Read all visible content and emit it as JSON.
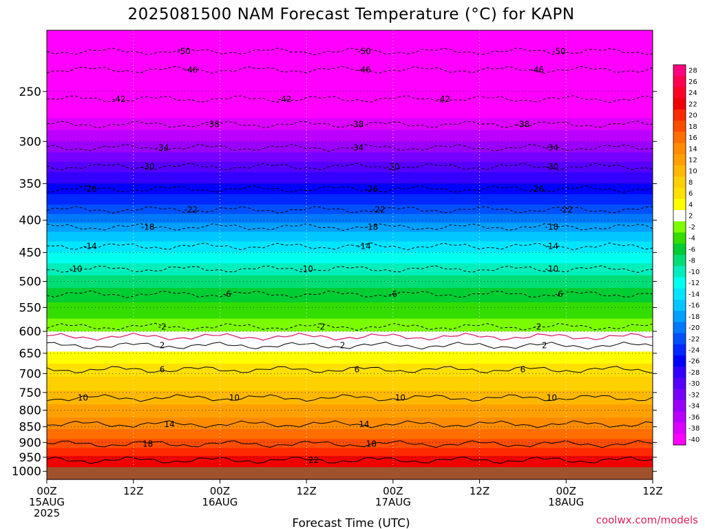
{
  "chart_data": {
    "type": "heatmap",
    "title": "2025081500 NAM Forecast Temperature (°C) for KAPN",
    "xlabel": "Forecast Time (UTC)",
    "ylabel": "",
    "credit": "coolwx.com/models",
    "x_ticks": [
      {
        "hours": 0,
        "top": "00Z",
        "mid": "15AUG",
        "bot": "2025"
      },
      {
        "hours": 12,
        "top": "12Z",
        "mid": "",
        "bot": ""
      },
      {
        "hours": 24,
        "top": "00Z",
        "mid": "16AUG",
        "bot": ""
      },
      {
        "hours": 36,
        "top": "12Z",
        "mid": "",
        "bot": ""
      },
      {
        "hours": 48,
        "top": "00Z",
        "mid": "17AUG",
        "bot": ""
      },
      {
        "hours": 60,
        "top": "12Z",
        "mid": "",
        "bot": ""
      },
      {
        "hours": 72,
        "top": "00Z",
        "mid": "18AUG",
        "bot": ""
      },
      {
        "hours": 84,
        "top": "12Z",
        "mid": "",
        "bot": ""
      }
    ],
    "xlim_hours": [
      0,
      84
    ],
    "y_ticks": [
      250,
      300,
      350,
      400,
      450,
      500,
      550,
      600,
      650,
      700,
      750,
      800,
      850,
      900,
      950,
      1000
    ],
    "ylim_pressure_hpa": [
      1030,
      200
    ],
    "ylog": true,
    "colorbar_levels": [
      "28",
      "26",
      "24",
      "22",
      "20",
      "18",
      "16",
      "14",
      "12",
      "10",
      "8",
      "6",
      "4",
      "2",
      "-2",
      "-4",
      "-6",
      "-8",
      "-10",
      "-12",
      "-14",
      "-16",
      "-18",
      "-20",
      "-22",
      "-24",
      "-26",
      "-28",
      "-30",
      "-32",
      "-34",
      "-36",
      "-38",
      "-40"
    ],
    "colorbar_colors": [
      "#ff0080",
      "#ff0050",
      "#ff0028",
      "#f00000",
      "#ff2a00",
      "#ff4d00",
      "#ff6e00",
      "#ff8c00",
      "#ffa000",
      "#ffb800",
      "#ffd000",
      "#ffe000",
      "#ffff00",
      "#ffffff",
      "#7cfc00",
      "#33dd00",
      "#00cc33",
      "#00dd77",
      "#00eebb",
      "#00ffee",
      "#00e5ff",
      "#00c8ff",
      "#00a0ff",
      "#0078ff",
      "#0050ff",
      "#0028ff",
      "#0000ff",
      "#3300ff",
      "#5500ff",
      "#7700ff",
      "#9900ff",
      "#bb00ff",
      "#dd00ff",
      "#ff00ff"
    ],
    "isotherms": [
      {
        "temp": -50,
        "pressure_hpa": 216,
        "labels_at_hours": [
          19,
          44,
          71
        ]
      },
      {
        "temp": -46,
        "pressure_hpa": 231,
        "labels_at_hours": [
          20,
          44,
          68
        ]
      },
      {
        "temp": -42,
        "pressure_hpa": 257,
        "labels_at_hours": [
          10,
          33,
          55
        ]
      },
      {
        "temp": -38,
        "pressure_hpa": 282,
        "labels_at_hours": [
          23,
          43,
          66
        ]
      },
      {
        "temp": -34,
        "pressure_hpa": 307,
        "labels_at_hours": [
          16,
          43,
          70
        ]
      },
      {
        "temp": -30,
        "pressure_hpa": 329,
        "labels_at_hours": [
          14,
          48,
          70
        ]
      },
      {
        "temp": -26,
        "pressure_hpa": 357,
        "labels_at_hours": [
          6,
          45,
          68
        ]
      },
      {
        "temp": -22,
        "pressure_hpa": 385,
        "labels_at_hours": [
          20,
          46,
          72
        ]
      },
      {
        "temp": -18,
        "pressure_hpa": 410,
        "labels_at_hours": [
          14,
          45,
          70
        ]
      },
      {
        "temp": -14,
        "pressure_hpa": 440,
        "labels_at_hours": [
          6,
          44,
          70
        ]
      },
      {
        "temp": -10,
        "pressure_hpa": 478,
        "labels_at_hours": [
          4,
          36,
          70
        ]
      },
      {
        "temp": -6,
        "pressure_hpa": 524,
        "labels_at_hours": [
          25,
          48,
          71
        ]
      },
      {
        "temp": -2,
        "pressure_hpa": 590,
        "labels_at_hours": [
          16,
          38,
          68
        ]
      },
      {
        "temp": 2,
        "pressure_hpa": 632,
        "labels_at_hours": [
          16,
          41,
          69
        ]
      },
      {
        "temp": 6,
        "pressure_hpa": 690,
        "labels_at_hours": [
          16,
          43,
          66
        ]
      },
      {
        "temp": 10,
        "pressure_hpa": 765,
        "labels_at_hours": [
          5,
          26,
          49,
          70
        ]
      },
      {
        "temp": 14,
        "pressure_hpa": 842,
        "labels_at_hours": [
          17,
          44
        ]
      },
      {
        "temp": 18,
        "pressure_hpa": 905,
        "labels_at_hours": [
          14,
          45
        ]
      },
      {
        "temp": 22,
        "pressure_hpa": 960,
        "labels_at_hours": [
          37
        ]
      }
    ],
    "freezing_line_pressure_hpa": 612,
    "surface_pressure_hpa": 985,
    "grid": true
  }
}
